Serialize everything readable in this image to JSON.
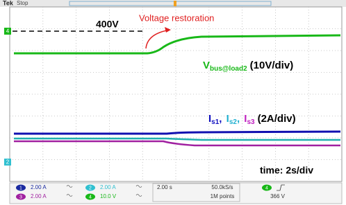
{
  "header": {
    "brand": "Tek",
    "status": "Stop"
  },
  "annotations": {
    "reference": "400V",
    "event": "Voltage restoration",
    "voltage_label": {
      "symbol": "V",
      "subscript": "bus@load2",
      "scale": "(10V/div)"
    },
    "current_label": {
      "items": [
        {
          "symbol": "I",
          "subscript": "s1"
        },
        {
          "symbol": "I",
          "subscript": "s2"
        },
        {
          "symbol": "I",
          "subscript": "s3"
        }
      ],
      "separator": ",",
      "scale": "(2A/div)"
    },
    "time": "time: 2s/div"
  },
  "markers": [
    "4",
    "2"
  ],
  "status_bar": {
    "channels": [
      {
        "number": "1",
        "scale": "2.00 A"
      },
      {
        "number": "2",
        "scale": "2.00 A"
      },
      {
        "number": "3",
        "scale": "2.00 A"
      },
      {
        "number": "4",
        "scale": "10.0 V"
      }
    ],
    "timebase": "2.00 s",
    "sample_rate": "50.0kS/s",
    "record_length": "1M points",
    "trigger": {
      "channel": "4",
      "level": "366 V"
    }
  }
}
